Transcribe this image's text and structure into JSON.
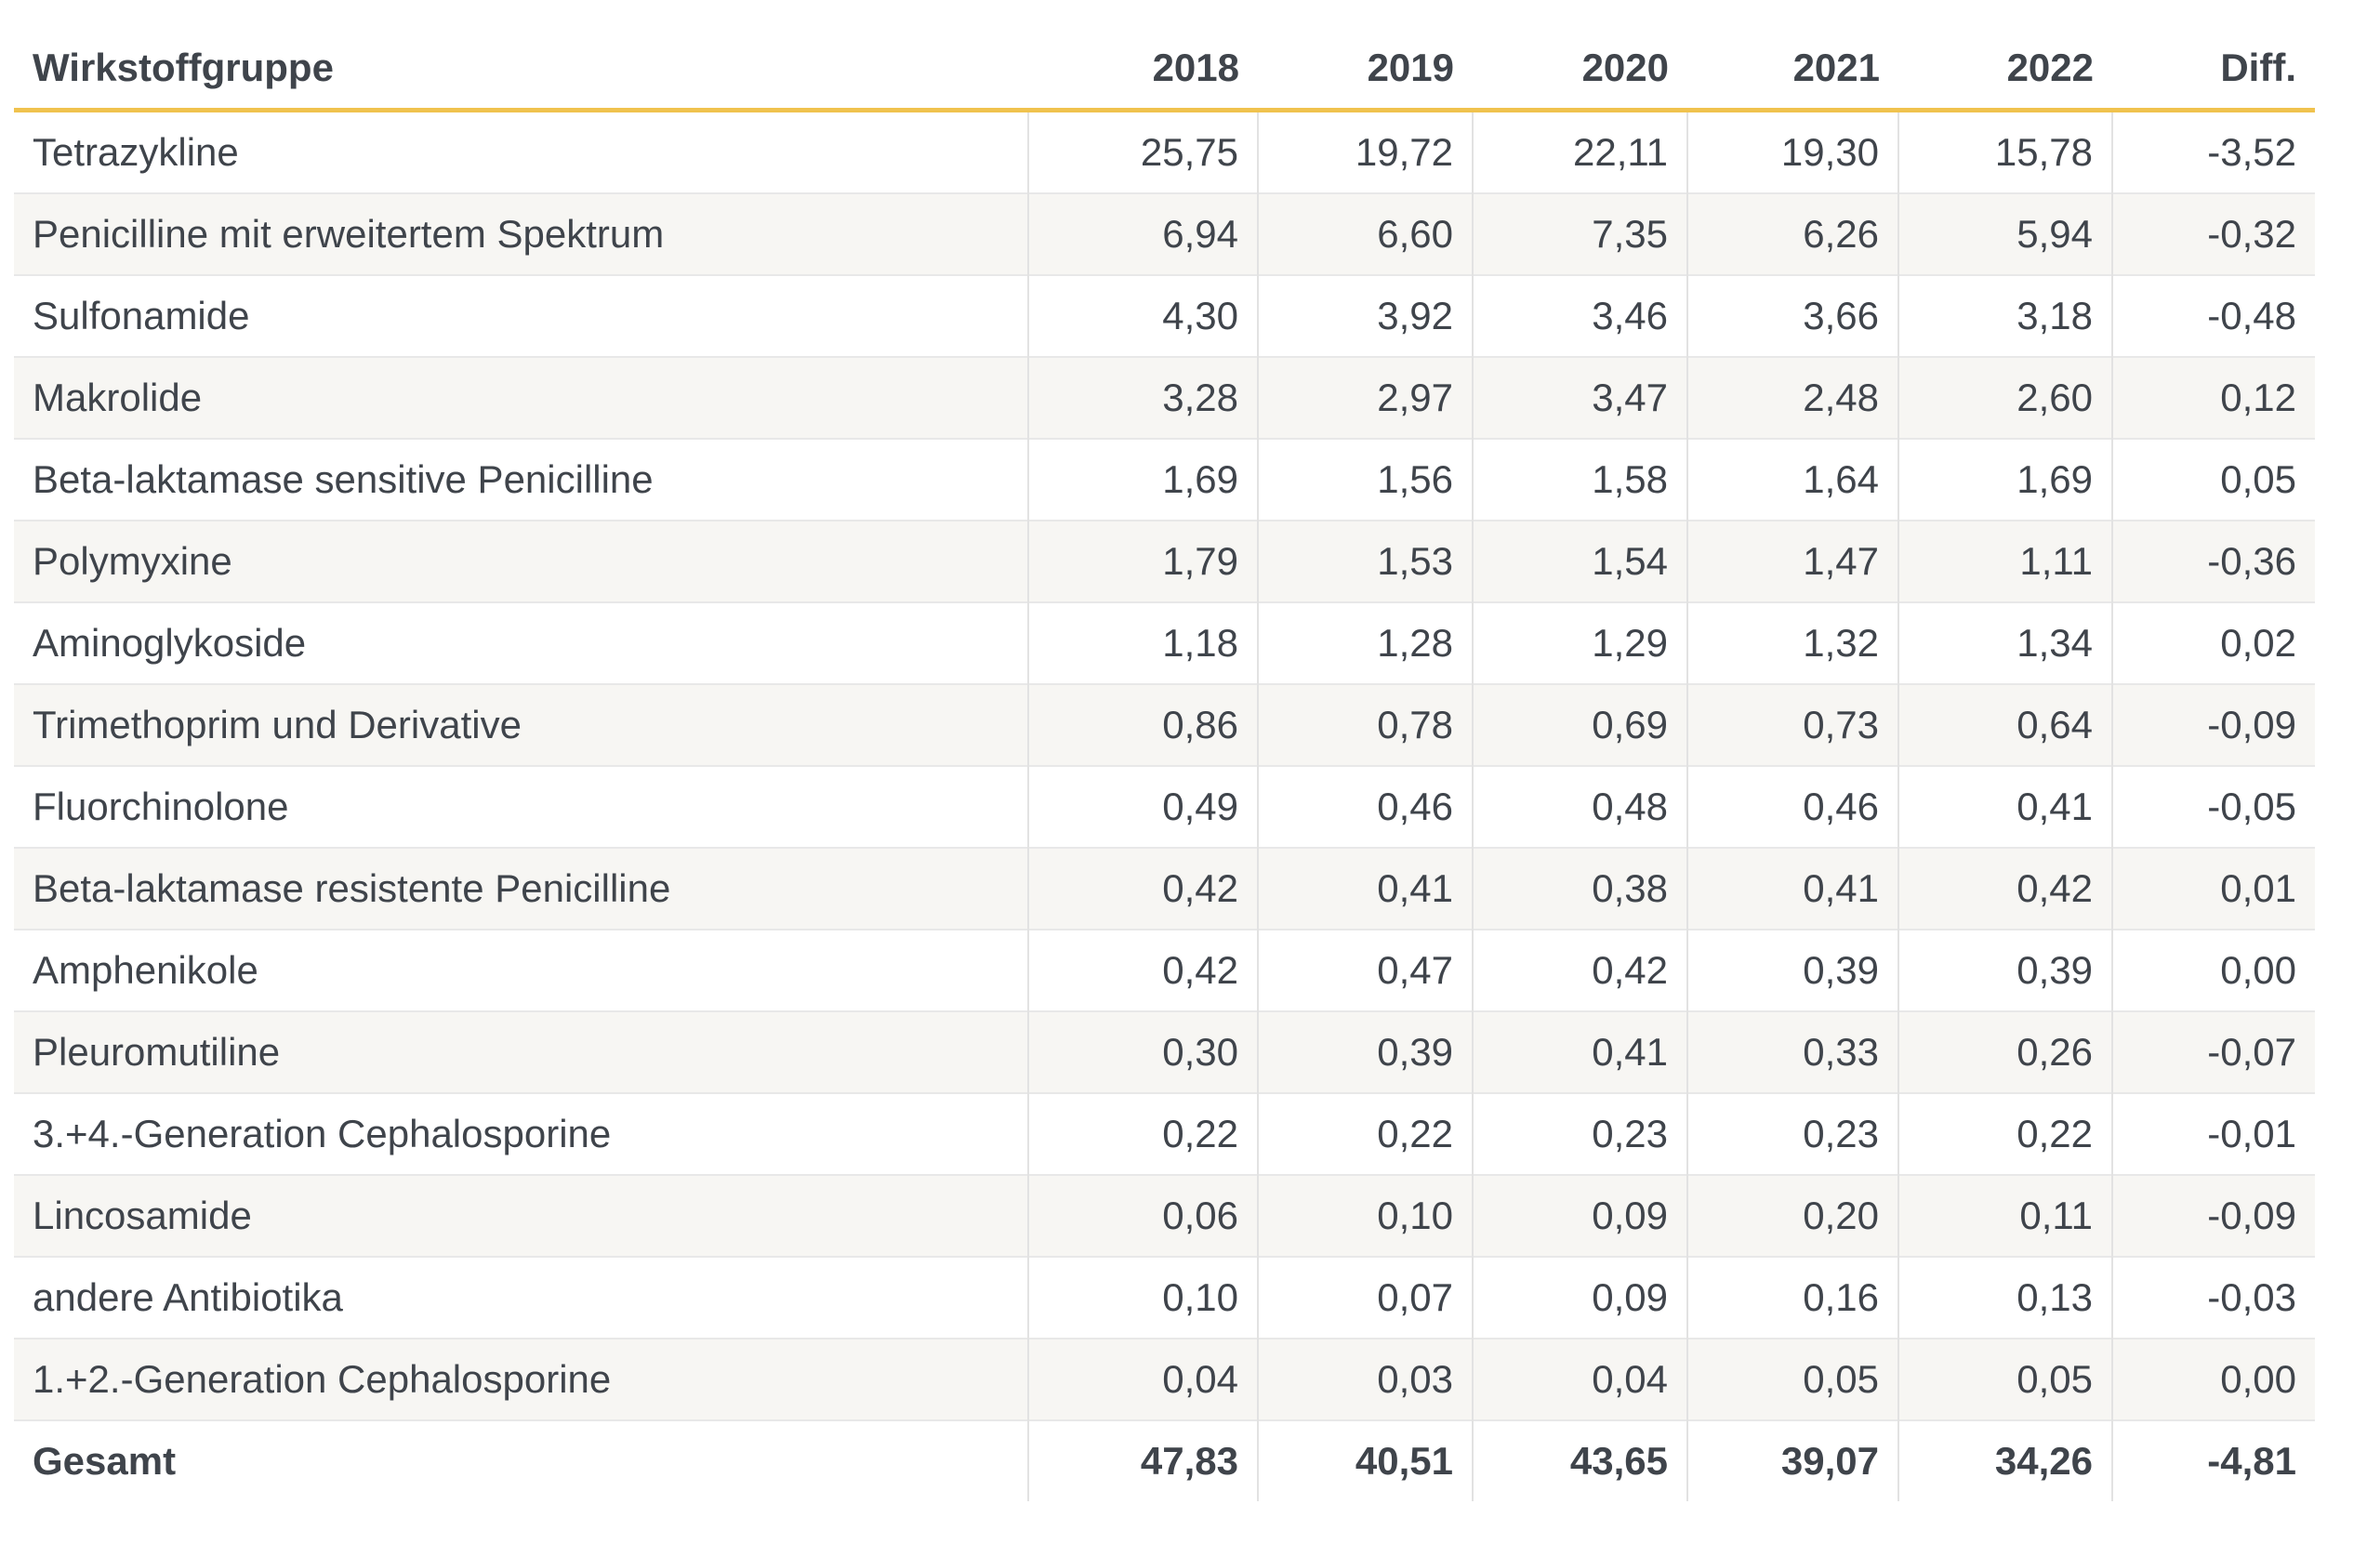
{
  "table": {
    "header": [
      "Wirkstoffgruppe",
      "2018",
      "2019",
      "2020",
      "2021",
      "2022",
      "Diff."
    ],
    "rows": [
      {
        "name": "Tetrazykline",
        "values": [
          "25,75",
          "19,72",
          "22,11",
          "19,30",
          "15,78",
          "-3,52"
        ]
      },
      {
        "name": "Penicilline mit erweitertem Spektrum",
        "values": [
          "6,94",
          "6,60",
          "7,35",
          "6,26",
          "5,94",
          "-0,32"
        ]
      },
      {
        "name": "Sulfonamide",
        "values": [
          "4,30",
          "3,92",
          "3,46",
          "3,66",
          "3,18",
          "-0,48"
        ]
      },
      {
        "name": "Makrolide",
        "values": [
          "3,28",
          "2,97",
          "3,47",
          "2,48",
          "2,60",
          "0,12"
        ]
      },
      {
        "name": "Beta-laktamase sensitive Penicilline",
        "values": [
          "1,69",
          "1,56",
          "1,58",
          "1,64",
          "1,69",
          "0,05"
        ]
      },
      {
        "name": "Polymyxine",
        "values": [
          "1,79",
          "1,53",
          "1,54",
          "1,47",
          "1,11",
          "-0,36"
        ]
      },
      {
        "name": "Aminoglykoside",
        "values": [
          "1,18",
          "1,28",
          "1,29",
          "1,32",
          "1,34",
          "0,02"
        ]
      },
      {
        "name": "Trimethoprim und Derivative",
        "values": [
          "0,86",
          "0,78",
          "0,69",
          "0,73",
          "0,64",
          "-0,09"
        ]
      },
      {
        "name": "Fluorchinolone",
        "values": [
          "0,49",
          "0,46",
          "0,48",
          "0,46",
          "0,41",
          "-0,05"
        ]
      },
      {
        "name": "Beta-laktamase resistente Penicilline",
        "values": [
          "0,42",
          "0,41",
          "0,38",
          "0,41",
          "0,42",
          "0,01"
        ]
      },
      {
        "name": "Amphenikole",
        "values": [
          "0,42",
          "0,47",
          "0,42",
          "0,39",
          "0,39",
          "0,00"
        ]
      },
      {
        "name": "Pleuromutiline",
        "values": [
          "0,30",
          "0,39",
          "0,41",
          "0,33",
          "0,26",
          "-0,07"
        ]
      },
      {
        "name": "3.+4.-Generation Cephalosporine",
        "values": [
          "0,22",
          "0,22",
          "0,23",
          "0,23",
          "0,22",
          "-0,01"
        ]
      },
      {
        "name": "Lincosamide",
        "values": [
          "0,06",
          "0,10",
          "0,09",
          "0,20",
          "0,11",
          "-0,09"
        ]
      },
      {
        "name": "andere Antibiotika",
        "values": [
          "0,10",
          "0,07",
          "0,09",
          "0,16",
          "0,13",
          "-0,03"
        ]
      },
      {
        "name": "1.+2.-Generation Cephalosporine",
        "values": [
          "0,04",
          "0,03",
          "0,04",
          "0,05",
          "0,05",
          "0,00"
        ]
      }
    ],
    "total": {
      "name": "Gesamt",
      "values": [
        "47,83",
        "40,51",
        "43,65",
        "39,07",
        "34,26",
        "-4,81"
      ]
    }
  },
  "colors": {
    "accent_rule": "#f0c24e",
    "row_stripe": "#f7f6f3",
    "text": "#3f444b",
    "grid_vertical": "#e2e2e2",
    "grid_horizontal": "#e8e8e8"
  },
  "chart_data": {
    "type": "table",
    "row_label": "Wirkstoffgruppe",
    "categories": [
      "2018",
      "2019",
      "2020",
      "2021",
      "2022"
    ],
    "diff_label": "Diff.",
    "series": [
      {
        "name": "Tetrazykline",
        "values": [
          25.75,
          19.72,
          22.11,
          19.3,
          15.78
        ],
        "diff": -3.52
      },
      {
        "name": "Penicilline mit erweitertem Spektrum",
        "values": [
          6.94,
          6.6,
          7.35,
          6.26,
          5.94
        ],
        "diff": -0.32
      },
      {
        "name": "Sulfonamide",
        "values": [
          4.3,
          3.92,
          3.46,
          3.66,
          3.18
        ],
        "diff": -0.48
      },
      {
        "name": "Makrolide",
        "values": [
          3.28,
          2.97,
          3.47,
          2.48,
          2.6
        ],
        "diff": 0.12
      },
      {
        "name": "Beta-laktamase sensitive Penicilline",
        "values": [
          1.69,
          1.56,
          1.58,
          1.64,
          1.69
        ],
        "diff": 0.05
      },
      {
        "name": "Polymyxine",
        "values": [
          1.79,
          1.53,
          1.54,
          1.47,
          1.11
        ],
        "diff": -0.36
      },
      {
        "name": "Aminoglykoside",
        "values": [
          1.18,
          1.28,
          1.29,
          1.32,
          1.34
        ],
        "diff": 0.02
      },
      {
        "name": "Trimethoprim und Derivative",
        "values": [
          0.86,
          0.78,
          0.69,
          0.73,
          0.64
        ],
        "diff": -0.09
      },
      {
        "name": "Fluorchinolone",
        "values": [
          0.49,
          0.46,
          0.48,
          0.46,
          0.41
        ],
        "diff": -0.05
      },
      {
        "name": "Beta-laktamase resistente Penicilline",
        "values": [
          0.42,
          0.41,
          0.38,
          0.41,
          0.42
        ],
        "diff": 0.01
      },
      {
        "name": "Amphenikole",
        "values": [
          0.42,
          0.47,
          0.42,
          0.39,
          0.39
        ],
        "diff": 0.0
      },
      {
        "name": "Pleuromutiline",
        "values": [
          0.3,
          0.39,
          0.41,
          0.33,
          0.26
        ],
        "diff": -0.07
      },
      {
        "name": "3.+4.-Generation Cephalosporine",
        "values": [
          0.22,
          0.22,
          0.23,
          0.23,
          0.22
        ],
        "diff": -0.01
      },
      {
        "name": "Lincosamide",
        "values": [
          0.06,
          0.1,
          0.09,
          0.2,
          0.11
        ],
        "diff": -0.09
      },
      {
        "name": "andere Antibiotika",
        "values": [
          0.1,
          0.07,
          0.09,
          0.16,
          0.13
        ],
        "diff": -0.03
      },
      {
        "name": "1.+2.-Generation Cephalosporine",
        "values": [
          0.04,
          0.03,
          0.04,
          0.05,
          0.05
        ],
        "diff": 0.0
      },
      {
        "name": "Gesamt",
        "is_total": true,
        "values": [
          47.83,
          40.51,
          43.65,
          39.07,
          34.26
        ],
        "diff": -4.81
      }
    ],
    "layout": {
      "striped_rows": true,
      "header_rule_color": "#f0c24e",
      "grid": "vertical-and-horizontal"
    }
  }
}
